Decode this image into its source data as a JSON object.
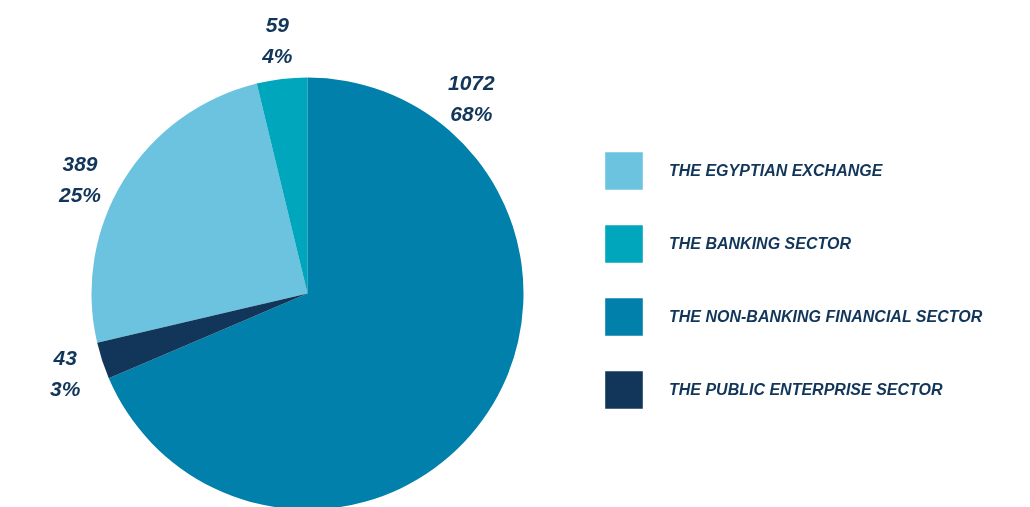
{
  "chart_data": {
    "type": "pie",
    "categories": [
      "THE EGYPTIAN EXCHANGE",
      "THE BANKING SECTOR",
      "THE NON-BANKING FINANCIAL SECTOR",
      "THE PUBLIC ENTERPRISE SECTOR"
    ],
    "values": [
      389,
      59,
      1072,
      43
    ],
    "colors": [
      "#6bc3df",
      "#00a6bb",
      "#0080aa",
      "#12365a"
    ],
    "value_labels": [
      "389\n25%",
      "59\n4%",
      "1072\n68%",
      "43\n3%"
    ],
    "legend": "right"
  }
}
